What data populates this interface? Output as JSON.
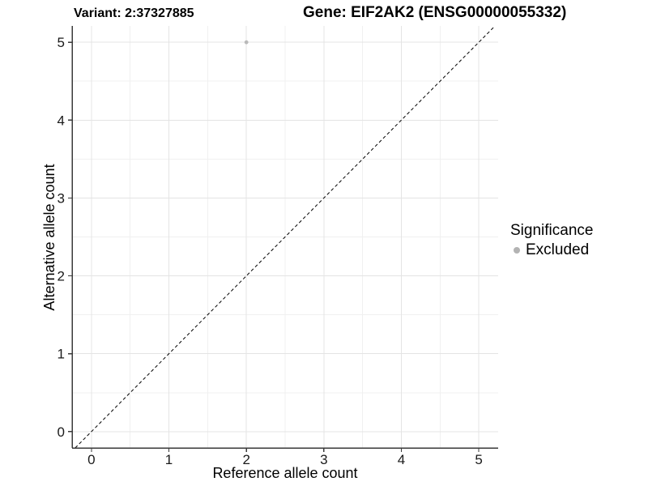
{
  "titles": {
    "variant": "Variant: 2:37327885",
    "gene": "Gene: EIF2AK2 (ENSG00000055332)"
  },
  "chart_data": {
    "type": "scatter",
    "title": "Variant: 2:37327885  |  Gene: EIF2AK2 (ENSG00000055332)",
    "xlabel": "Reference allele count",
    "ylabel": "Alternative allele count",
    "xlim": [
      -0.25,
      5.25
    ],
    "ylim": [
      -0.21,
      5.21
    ],
    "xticks": [
      0,
      1,
      2,
      3,
      4,
      5
    ],
    "yticks": [
      0,
      1,
      2,
      3,
      4,
      5
    ],
    "grid": "major+minor",
    "minor_grid_at_midpoints": true,
    "series": [
      {
        "name": "Excluded",
        "points": [
          {
            "x": 2,
            "y": 5
          }
        ],
        "color": "#b9b9b9"
      }
    ],
    "identity_line": {
      "slope": 1,
      "intercept": 0,
      "linetype": "dashed",
      "color": "#000000"
    },
    "legend": {
      "title": "Significance",
      "position": "right",
      "entries": [
        {
          "label": "Excluded",
          "marker": "circle",
          "color": "#b3b3b3"
        }
      ]
    }
  },
  "colors": {
    "background": "#ffffff",
    "grid_major": "#e4e4e4",
    "grid_minor": "#f0f0f0",
    "axis_line": "#3a3a3a",
    "tick_text": "#1a1a1a",
    "point_excluded": "#b9b9b9"
  }
}
